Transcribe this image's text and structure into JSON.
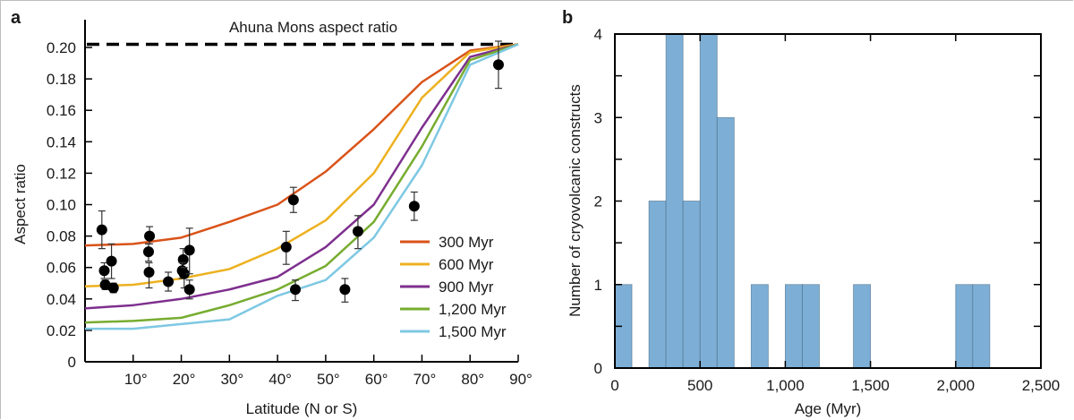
{
  "chart_data": [
    {
      "panel": "a",
      "type": "line",
      "title": "Ahuna Mons aspect ratio",
      "xlabel": "Latitude (N or S)",
      "ylabel": "Aspect ratio",
      "xlim": [
        0,
        90
      ],
      "ylim": [
        0,
        0.21
      ],
      "x_ticks": [
        10,
        20,
        30,
        40,
        50,
        60,
        70,
        80,
        90
      ],
      "x_tick_labels": [
        "10°",
        "20°",
        "30°",
        "40°",
        "50°",
        "60°",
        "70°",
        "80°",
        "90°"
      ],
      "y_ticks": [
        0,
        0.02,
        0.04,
        0.06,
        0.08,
        0.1,
        0.12,
        0.14,
        0.16,
        0.18,
        0.2
      ],
      "y_tick_labels": [
        "0",
        "0.02",
        "0.04",
        "0.06",
        "0.08",
        "0.10",
        "0.12",
        "0.14",
        "0.16",
        "0.18",
        "0.20"
      ],
      "reference_line": {
        "label": "Ahuna Mons aspect ratio",
        "value": 0.202,
        "style": "dashed",
        "color": "#000000"
      },
      "legend_position": "right",
      "x": [
        0,
        10,
        20,
        30,
        40,
        50,
        60,
        70,
        80,
        90
      ],
      "series": [
        {
          "name": "300 Myr",
          "color": "#D95319",
          "values": [
            0.074,
            0.075,
            0.079,
            0.089,
            0.1,
            0.121,
            0.148,
            0.178,
            0.198,
            0.202
          ]
        },
        {
          "name": "600 Myr",
          "color": "#EDB120",
          "values": [
            0.048,
            0.049,
            0.053,
            0.059,
            0.072,
            0.09,
            0.12,
            0.168,
            0.197,
            0.202
          ]
        },
        {
          "name": "900 Myr",
          "color": "#7E2F8E",
          "values": [
            0.034,
            0.036,
            0.04,
            0.046,
            0.054,
            0.073,
            0.1,
            0.149,
            0.194,
            0.202
          ]
        },
        {
          "name": "1,200 Myr",
          "color": "#77AC30",
          "values": [
            0.025,
            0.026,
            0.028,
            0.036,
            0.046,
            0.061,
            0.089,
            0.137,
            0.192,
            0.202
          ]
        },
        {
          "name": "1,500 Myr",
          "color": "#7EC8E3",
          "values": [
            0.021,
            0.021,
            0.024,
            0.027,
            0.042,
            0.052,
            0.079,
            0.125,
            0.189,
            0.202
          ]
        }
      ],
      "points": [
        {
          "x": 3.5,
          "y": 0.084,
          "err_low": 0.072,
          "err_high": 0.096
        },
        {
          "x": 4.0,
          "y": 0.058,
          "err_low": 0.053,
          "err_high": 0.063
        },
        {
          "x": 5.5,
          "y": 0.064,
          "err_low": 0.053,
          "err_high": 0.075
        },
        {
          "x": 4.2,
          "y": 0.049,
          "err_low": 0.046,
          "err_high": 0.052
        },
        {
          "x": 5.9,
          "y": 0.047,
          "err_low": 0.044,
          "err_high": 0.05
        },
        {
          "x": 13.4,
          "y": 0.08,
          "err_low": 0.075,
          "err_high": 0.086
        },
        {
          "x": 13.2,
          "y": 0.07,
          "err_low": 0.064,
          "err_high": 0.075
        },
        {
          "x": 13.3,
          "y": 0.057,
          "err_low": 0.047,
          "err_high": 0.063
        },
        {
          "x": 17.3,
          "y": 0.051,
          "err_low": 0.045,
          "err_high": 0.057
        },
        {
          "x": 20.4,
          "y": 0.065,
          "err_low": 0.058,
          "err_high": 0.072
        },
        {
          "x": 20.2,
          "y": 0.058,
          "err_low": 0.053,
          "err_high": 0.063
        },
        {
          "x": 20.6,
          "y": 0.056,
          "err_low": 0.047,
          "err_high": 0.06
        },
        {
          "x": 21.7,
          "y": 0.071,
          "err_low": 0.056,
          "err_high": 0.085
        },
        {
          "x": 21.7,
          "y": 0.046,
          "err_low": 0.04,
          "err_high": 0.052
        },
        {
          "x": 43.3,
          "y": 0.103,
          "err_low": 0.095,
          "err_high": 0.111
        },
        {
          "x": 41.8,
          "y": 0.073,
          "err_low": 0.062,
          "err_high": 0.083
        },
        {
          "x": 43.7,
          "y": 0.046,
          "err_low": 0.039,
          "err_high": 0.052
        },
        {
          "x": 54.0,
          "y": 0.046,
          "err_low": 0.038,
          "err_high": 0.053
        },
        {
          "x": 56.7,
          "y": 0.083,
          "err_low": 0.072,
          "err_high": 0.093
        },
        {
          "x": 68.4,
          "y": 0.099,
          "err_low": 0.09,
          "err_high": 0.108
        },
        {
          "x": 85.9,
          "y": 0.189,
          "err_low": 0.174,
          "err_high": 0.204
        }
      ]
    },
    {
      "panel": "b",
      "type": "bar",
      "title": "",
      "xlabel": "Age (Myr)",
      "ylabel": "Number of cryovolcanic constructs",
      "xlim": [
        0,
        2500
      ],
      "ylim": [
        0,
        4
      ],
      "x_ticks": [
        0,
        500,
        1000,
        1500,
        2000,
        2500
      ],
      "x_tick_labels": [
        "0",
        "500",
        "1,000",
        "1,500",
        "2,000",
        "2,500"
      ],
      "y_ticks": [
        0,
        1,
        2,
        3,
        4
      ],
      "y_tick_labels": [
        "0",
        "1",
        "2",
        "3",
        "4"
      ],
      "bar_color": "#7DAFD6",
      "bin_width": 100,
      "bins": [
        {
          "start": 0,
          "count": 1
        },
        {
          "start": 200,
          "count": 2
        },
        {
          "start": 300,
          "count": 4
        },
        {
          "start": 400,
          "count": 2
        },
        {
          "start": 500,
          "count": 4
        },
        {
          "start": 600,
          "count": 3
        },
        {
          "start": 800,
          "count": 1
        },
        {
          "start": 1000,
          "count": 1
        },
        {
          "start": 1100,
          "count": 1
        },
        {
          "start": 1400,
          "count": 1
        },
        {
          "start": 2000,
          "count": 1
        },
        {
          "start": 2100,
          "count": 1
        }
      ]
    }
  ],
  "labels": {
    "panel_a": "a",
    "panel_b": "b"
  }
}
